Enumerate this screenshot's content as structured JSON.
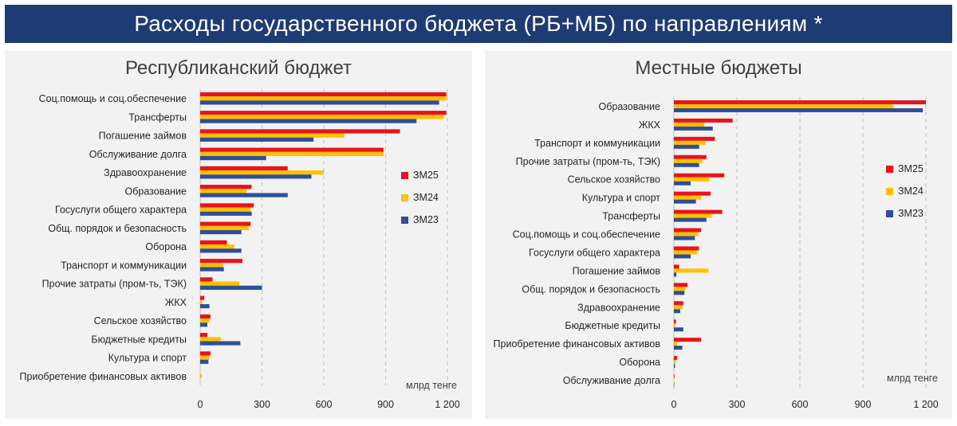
{
  "header": {
    "title": "Расходы государственного бюджета (РБ+МБ) по направлениям *"
  },
  "colors": {
    "ЗМ25": "#e8141b",
    "ЗМ24": "#ffc000",
    "ЗМ23": "#2e4f96",
    "banner": "#1f3b73",
    "panel": "#f2f2f2",
    "grid": "#c8c8c8"
  },
  "chart_data": [
    {
      "type": "bar",
      "orientation": "horizontal",
      "title": "Республиканский бюджет",
      "unit": "млрд тенге",
      "xlim": [
        0,
        1200
      ],
      "xticks": [
        "0",
        "300",
        "600",
        "900",
        "1 200"
      ],
      "xtick_values": [
        0,
        300,
        600,
        900,
        1200
      ],
      "grid": "vertical dashed",
      "legend_position": "right",
      "categories": [
        "Соц.помощь и соц.обеспечение",
        "Трансферты",
        "Погашение займов",
        "Обслуживание долга",
        "Здравоохранение",
        "Образование",
        "Госуслуги общего характера",
        "Общ. порядок и безопасность",
        "Оборона",
        "Транспорт и коммуникации",
        "Прочие затраты (пром-ть, ТЭК)",
        "ЖКХ",
        "Сельское хозяйство",
        "Бюджетные кредиты",
        "Культура и спорт",
        "Приобретение финансовых активов"
      ],
      "series": [
        {
          "name": "ЗМ25",
          "values": [
            1195,
            1195,
            970,
            890,
            425,
            250,
            260,
            245,
            130,
            205,
            60,
            20,
            50,
            35,
            50,
            0
          ]
        },
        {
          "name": "ЗМ24",
          "values": [
            1195,
            1180,
            700,
            890,
            600,
            225,
            245,
            235,
            165,
            110,
            190,
            10,
            45,
            100,
            45,
            8
          ]
        },
        {
          "name": "ЗМ23",
          "values": [
            1160,
            1050,
            550,
            320,
            540,
            425,
            250,
            200,
            200,
            115,
            300,
            45,
            35,
            195,
            40,
            0
          ]
        }
      ]
    },
    {
      "type": "bar",
      "orientation": "horizontal",
      "title": "Местные бюджеты",
      "unit": "млрд тенге",
      "xlim": [
        0,
        1200
      ],
      "xticks": [
        "0",
        "300",
        "600",
        "900",
        "1 200"
      ],
      "xtick_values": [
        0,
        300,
        600,
        900,
        1200
      ],
      "grid": "vertical dashed",
      "legend_position": "right",
      "categories": [
        "Образование",
        "ЖКХ",
        "Транспорт и коммуникации",
        "Прочие затраты (пром-ть, ТЭК)",
        "Сельское хозяйство",
        "Культура и спорт",
        "Трансферты",
        "Соц.помощь и соц.обеспечение",
        "Госуслуги общего характера",
        "Погашение займов",
        "Общ. порядок и безопасность",
        "Здравоохранение",
        "Бюджетные кредиты",
        "Приобретение финансовых активов",
        "Оборона",
        "Обслуживание долга"
      ],
      "series": [
        {
          "name": "ЗМ25",
          "values": [
            1200,
            280,
            195,
            155,
            240,
            175,
            230,
            130,
            120,
            25,
            65,
            45,
            10,
            130,
            15,
            3
          ]
        },
        {
          "name": "ЗМ24",
          "values": [
            1045,
            145,
            150,
            135,
            170,
            130,
            180,
            115,
            110,
            165,
            55,
            40,
            5,
            15,
            8,
            2
          ]
        },
        {
          "name": "ЗМ23",
          "values": [
            1185,
            185,
            120,
            120,
            80,
            105,
            155,
            100,
            80,
            12,
            50,
            30,
            45,
            40,
            5,
            2
          ]
        }
      ]
    }
  ]
}
